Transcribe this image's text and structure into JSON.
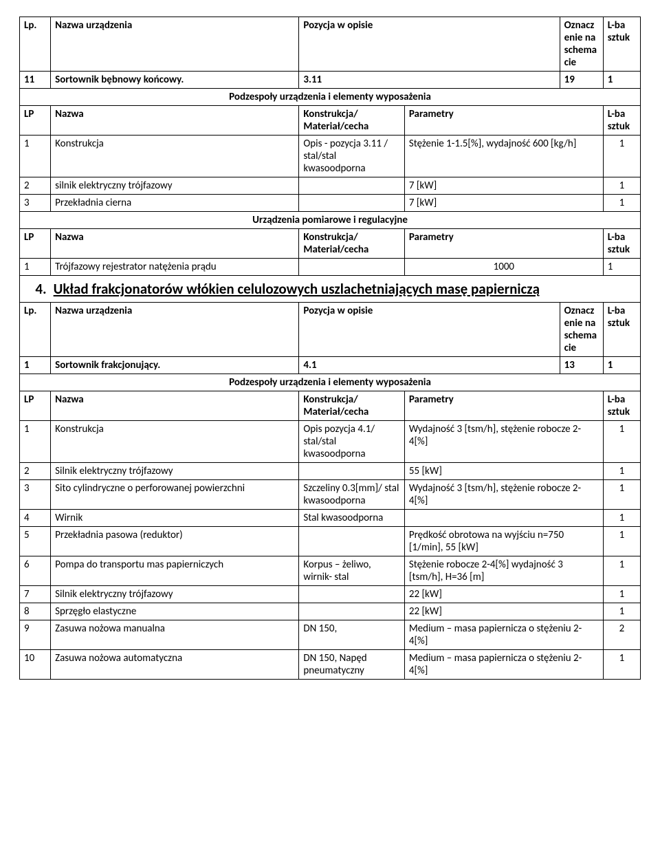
{
  "headers": {
    "lp": "Lp.",
    "lp_big": "LP",
    "nazwa_urz": "Nazwa urządzenia",
    "nazwa": "Nazwa",
    "poz_opis": "Pozycja w opisie",
    "ozn_schem": "Oznaczenie na schemacie",
    "lba_sztuk": "L-ba sztuk",
    "konstr_mat": "Konstrukcja/ Materiał/cecha",
    "parametry": "Parametry",
    "sub1": "Podzespoły urządzenia i elementy wyposażenia",
    "sub2": "Urządzenia pomiarowe i regulacyjne"
  },
  "top": {
    "num": "11",
    "name": "Sortownik bębnowy końcowy.",
    "poz": "3.11",
    "schem": "19",
    "qty": "1"
  },
  "comp1": [
    {
      "n": "1",
      "nazwa": "Konstrukcja",
      "kon": "Opis - pozycja 3.11 / stal/stal kwasoodporna",
      "par": "Stężenie 1-1.5[%], wydajność 600 [kg/h]",
      "q": "1"
    },
    {
      "n": "2",
      "nazwa": "silnik elektryczny trójfazowy",
      "kon": "",
      "par": "7 [kW]",
      "q": "1"
    },
    {
      "n": "3",
      "nazwa": "Przekładnia cierna",
      "kon": "",
      "par": "7 [kW]",
      "q": "1"
    }
  ],
  "meas1": [
    {
      "n": "1",
      "nazwa": "Trójfazowy rejestrator natężenia prądu",
      "kon": "",
      "par": "1000",
      "q": "1"
    }
  ],
  "section4": {
    "num": "4.",
    "title": "Układ frakcjonatorów włókien celulozowych uszlachetniających masę papierniczą"
  },
  "dev2": {
    "num": "1",
    "name": "Sortownik frakcjonujący.",
    "poz": "4.1",
    "schem": "13",
    "qty": "1"
  },
  "comp2": [
    {
      "n": "1",
      "nazwa": "Konstrukcja",
      "kon": "Opis  pozycja 4.1/ stal/stal kwasoodporna",
      "par": "Wydajność 3 [tsm/h], stężenie robocze 2-4[%]",
      "q": "1"
    },
    {
      "n": "2",
      "nazwa": "Silnik elektryczny trójfazowy",
      "kon": "",
      "par": "55 [kW]",
      "q": "1"
    },
    {
      "n": "3",
      "nazwa": "Sito cylindryczne o perforowanej powierzchni",
      "kon": " Szczeliny 0.3[mm]/ stal kwasoodporna",
      "par": "Wydajność 3 [tsm/h], stężenie robocze 2-4[%]",
      "q": "1"
    },
    {
      "n": "4",
      "nazwa": "Wirnik",
      "kon": "Stal kwasoodporna",
      "par": "",
      "q": "1"
    },
    {
      "n": "5",
      "nazwa": "Przekładnia pasowa (reduktor)",
      "kon": "",
      "par": "Prędkość obrotowa na wyjściu n=750 [1/min], 55 [kW]",
      "q": "1"
    },
    {
      "n": "6",
      "nazwa": "Pompa do transportu mas papierniczych",
      "kon": "Korpus – żeliwo, wirnik- stal",
      "par": "Stężenie robocze 2-4[%] wydajność 3 [tsm/h], H=36 [m]",
      "q": "1"
    },
    {
      "n": "7",
      "nazwa": "Silnik elektryczny trójfazowy",
      "kon": "",
      "par": "22 [kW]",
      "q": "1"
    },
    {
      "n": "8",
      "nazwa": "Sprzęgło elastyczne",
      "kon": "",
      "par": "22 [kW]",
      "q": "1"
    },
    {
      "n": "9",
      "nazwa": "Zasuwa nożowa manualna",
      "kon": "DN 150,",
      "par": "Medium – masa papiernicza o stężeniu 2-4[%]",
      "q": "2"
    },
    {
      "n": "10",
      "nazwa": "Zasuwa nożowa automatyczna",
      "kon": "DN 150, Napęd pneumatyczny",
      "par": "Medium – masa papiernicza o stężeniu 2-4[%]",
      "q": "1"
    }
  ]
}
